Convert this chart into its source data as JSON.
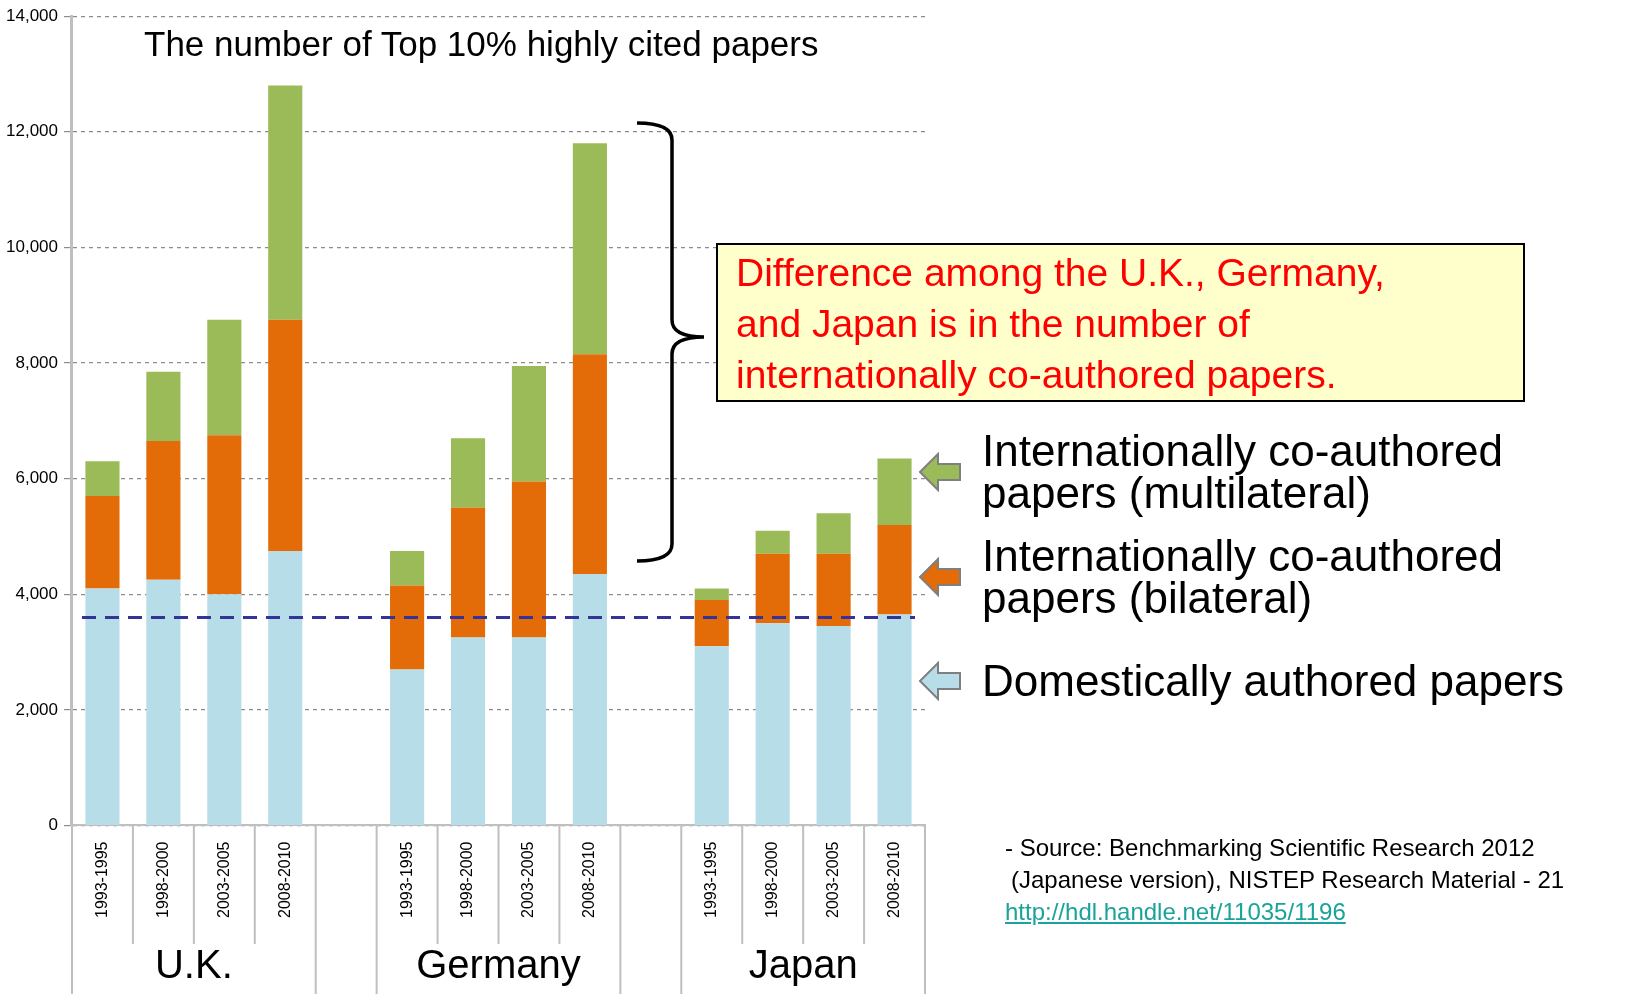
{
  "chart_data": {
    "type": "bar",
    "title": "The number of Top 10% highly cited papers",
    "categories": [
      "1993-1995",
      "1998-2000",
      "2003-2005",
      "2008-2010",
      null,
      "1993-1995",
      "1998-2000",
      "2003-2005",
      "2008-2010",
      null,
      "1993-1995",
      "1998-2000",
      "2003-2005",
      "2008-2010"
    ],
    "stacked": true,
    "series": [
      {
        "name": "Domestically authored papers",
        "color": "#b7dde8",
        "values": [
          4100,
          4250,
          4000,
          4750,
          null,
          2700,
          3250,
          3250,
          4350,
          null,
          3100,
          3500,
          3450,
          3650
        ]
      },
      {
        "name": "Internationally co-authored papers (bilateral)",
        "color": "#e36c09",
        "values": [
          1600,
          2400,
          2750,
          4000,
          null,
          1450,
          2250,
          2700,
          3800,
          null,
          800,
          1200,
          1250,
          1550
        ]
      },
      {
        "name": "Internationally co-authored papers (multilateral)",
        "color": "#9bbb59",
        "values": [
          600,
          1200,
          2000,
          4050,
          null,
          600,
          1200,
          2000,
          3650,
          null,
          200,
          400,
          700,
          1150
        ]
      }
    ],
    "ylim": [
      0,
      14000
    ],
    "yticks": [
      {
        "value": 0,
        "label": "0"
      },
      {
        "value": 2000,
        "label": "2,000"
      },
      {
        "value": 4000,
        "label": "4,000"
      },
      {
        "value": 6000,
        "label": "6,000"
      },
      {
        "value": 8000,
        "label": "8,000"
      },
      {
        "value": 10000,
        "label": "10,000"
      },
      {
        "value": 12000,
        "label": "12,000"
      },
      {
        "value": 14000,
        "label": "14,000"
      }
    ],
    "grid": "y",
    "legend": "right",
    "ref_lines": [
      {
        "axis": "y",
        "value": 3600,
        "color": "#333399",
        "line_style": "dashed"
      }
    ],
    "annotations": [
      "U.K.",
      "Germany",
      "Japan",
      "Difference among the U.K., Germany, and Japan is in the number of internationally co-authored papers.",
      "- Source: Benchmarking Scientific Research 2012",
      "(Japanese version), NISTEP Research Material - 21",
      "http://hdl.handle.net/11035/1196"
    ]
  }
}
